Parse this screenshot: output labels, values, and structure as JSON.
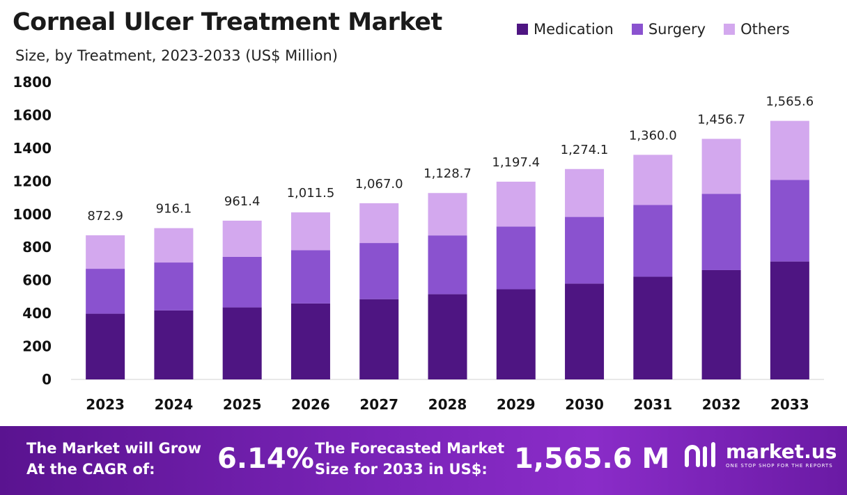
{
  "chart_data": {
    "type": "bar",
    "stacked": true,
    "title": "Corneal Ulcer Treatment Market",
    "subtitle": "Size, by Treatment, 2023-2033 (US$ Million)",
    "categories": [
      "2023",
      "2024",
      "2025",
      "2026",
      "2027",
      "2028",
      "2029",
      "2030",
      "2031",
      "2032",
      "2033"
    ],
    "series": [
      {
        "name": "Medication",
        "color": "#4e1582",
        "values": [
          398,
          418,
          436,
          460,
          486,
          516,
          546,
          580,
          622,
          662,
          714
        ]
      },
      {
        "name": "Surgery",
        "color": "#8a52cf",
        "values": [
          272,
          290,
          306,
          322,
          340,
          356,
          380,
          404,
          434,
          462,
          494
        ]
      },
      {
        "name": "Others",
        "color": "#d3a8ee",
        "values": [
          202.9,
          208.1,
          219.4,
          229.5,
          241.0,
          256.7,
          271.4,
          290.1,
          304.0,
          332.7,
          357.6
        ]
      }
    ],
    "totals_labels": [
      "872.9",
      "916.1",
      "961.4",
      "1,011.5",
      "1,067.0",
      "1,128.7",
      "1,197.4",
      "1,274.1",
      "1,360.0",
      "1,456.7",
      "1,565.6"
    ],
    "yticks": [
      "0",
      "200",
      "400",
      "600",
      "800",
      "1000",
      "1200",
      "1400",
      "1600",
      "1800"
    ],
    "ylim": [
      0,
      1800
    ],
    "xlabel": "",
    "ylabel": "",
    "legend_position": "top-right",
    "grid": false
  },
  "footer": {
    "cagr_label": "The Market will Grow\nAt the CAGR of:",
    "cagr_value": "6.14%",
    "forecast_label": "The Forecasted Market\nSize for 2033 in US$:",
    "forecast_value": "1,565.6 M",
    "brand": "market.us",
    "tagline": "ONE STOP SHOP FOR THE REPORTS"
  }
}
